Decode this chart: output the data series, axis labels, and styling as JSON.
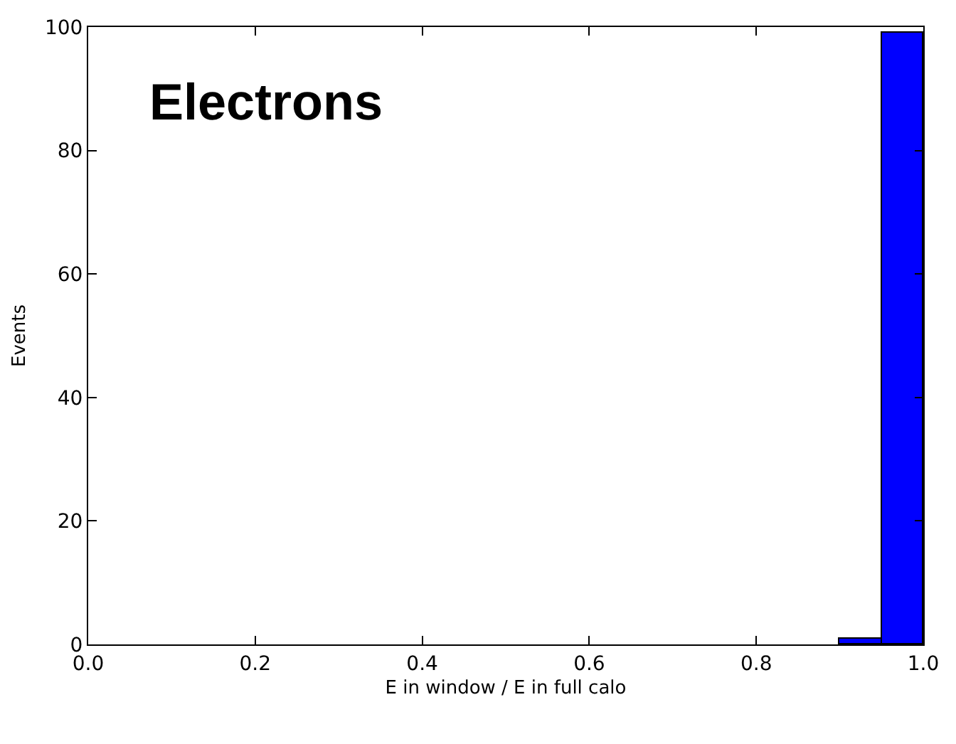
{
  "chart_data": {
    "type": "histogram",
    "bins": [
      0.9,
      0.95,
      1.0
    ],
    "values": [
      1,
      99
    ],
    "color": "#0000ff",
    "xlabel": "E in window / E in full calo",
    "ylabel": "Events",
    "annotations": [
      "Electrons"
    ],
    "xlim": [
      0.0,
      1.0
    ],
    "xticks": [
      {
        "value": 0,
        "label": "0.0"
      },
      0.2,
      0.4,
      0.6,
      0.8,
      {
        "value": 1,
        "label": "1.0"
      }
    ],
    "ylim": [
      0,
      100
    ],
    "yticks": [
      0,
      20,
      40,
      60,
      80,
      100
    ]
  }
}
